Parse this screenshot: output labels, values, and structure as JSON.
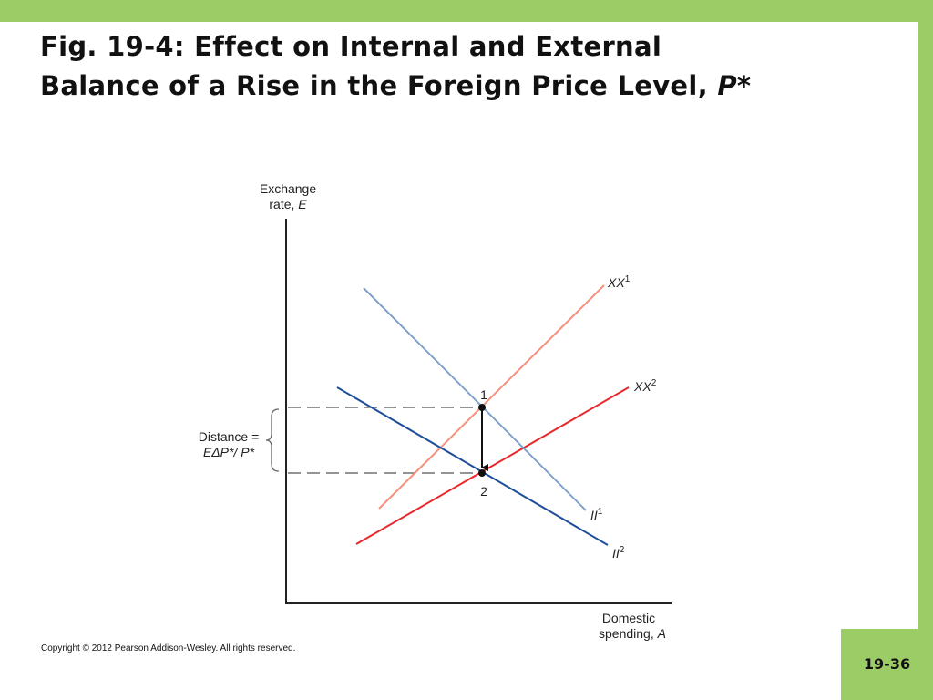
{
  "slide": {
    "title_line1": "Fig. 19-4: Effect on Internal and External",
    "title_line2_prefix": "Balance of a Rise in the Foreign Price Level, ",
    "title_line2_italic": "P*",
    "copyright": "Copyright © 2012 Pearson Addison-Wesley. All rights reserved.",
    "slide_number": "19-36"
  },
  "diagram": {
    "y_axis_label_line1": "Exchange",
    "y_axis_label_line2_prefix": "rate, ",
    "y_axis_label_line2_italic": "E",
    "x_axis_label_line1": "Domestic",
    "x_axis_label_line2_prefix": "spending, ",
    "x_axis_label_line2_italic": "A",
    "distance_label_line1": "Distance =",
    "distance_label_line2": "EΔP*/ P*",
    "point_1_label": "1",
    "point_2_label": "2",
    "curves": {
      "xx1": {
        "base": "XX",
        "sup": "1",
        "color": "#f4907c"
      },
      "xx2": {
        "base": "XX",
        "sup": "2",
        "color": "#e8282a"
      },
      "ii1": {
        "base": "II",
        "sup": "1",
        "color": "#7fa2cc"
      },
      "ii2": {
        "base": "II",
        "sup": "2",
        "color": "#1f4e9a"
      }
    }
  }
}
